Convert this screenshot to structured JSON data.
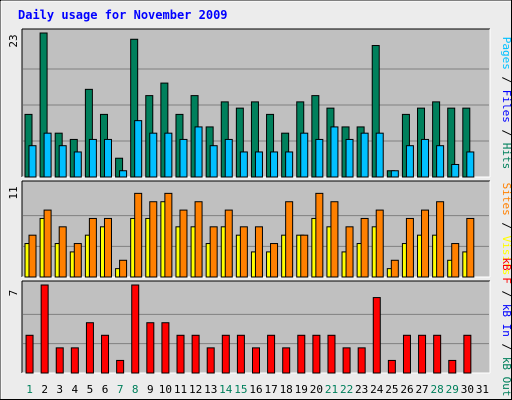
{
  "title": "Daily usage for November 2009",
  "colors": {
    "background": "#ececec",
    "plot": "#c0c0c0",
    "title": "#0000ff",
    "hits": "#00805c",
    "files": "#00c0ff",
    "pages": "#00c0ff",
    "visits": "#ffff00",
    "sites": "#ff8000",
    "kbin": "#ff0000",
    "kbout": "#00805c"
  },
  "right_labels": {
    "top": [
      {
        "text": "Pages",
        "color": "#00c0ff"
      },
      {
        "text": " / ",
        "color": "#000000"
      },
      {
        "text": "Files",
        "color": "#0000ff"
      },
      {
        "text": " / ",
        "color": "#000000"
      },
      {
        "text": "Hits",
        "color": "#00805c"
      }
    ],
    "middle": [
      {
        "text": "Sites",
        "color": "#ff8000"
      },
      {
        "text": " / ",
        "color": "#000000"
      },
      {
        "text": "Visits",
        "color": "#ffff00"
      }
    ],
    "bottom": [
      {
        "text": "kB F",
        "color": "#ff0000"
      },
      {
        "text": " / ",
        "color": "#000000"
      },
      {
        "text": "kB In",
        "color": "#0000ff"
      },
      {
        "text": " / ",
        "color": "#000000"
      },
      {
        "text": "kB Out",
        "color": "#00805c"
      }
    ]
  },
  "chart_data": {
    "type": "bar",
    "categories": [
      "1",
      "2",
      "3",
      "4",
      "5",
      "6",
      "7",
      "8",
      "9",
      "10",
      "11",
      "12",
      "13",
      "14",
      "15",
      "16",
      "17",
      "18",
      "19",
      "20",
      "21",
      "22",
      "23",
      "24",
      "25",
      "26",
      "27",
      "28",
      "29",
      "30",
      "31"
    ],
    "weekend_days": [
      "1",
      "7",
      "8",
      "14",
      "15",
      "21",
      "22",
      "28",
      "29"
    ],
    "panels": [
      {
        "name": "hits-files-pages",
        "ymax_label": "23",
        "ylim": [
          0,
          23
        ],
        "series": [
          {
            "values": [
              10,
              23,
              7,
              6,
              14,
              10,
              3,
              22,
              13,
              15,
              10,
              13,
              8,
              12,
              11,
              12,
              10,
              7,
              12,
              13,
              11,
              8,
              8,
              21,
              1,
              10,
              11,
              12,
              11,
              11
            ]
          },
          {
            "values": [
              5,
              7,
              5,
              4,
              6,
              6,
              1,
              9,
              7,
              7,
              6,
              8,
              5,
              6,
              4,
              4,
              4,
              4,
              7,
              6,
              8,
              6,
              7,
              7,
              1,
              5,
              6,
              5,
              2,
              4
            ]
          }
        ]
      },
      {
        "name": "visits-sites",
        "ymax_label": "11",
        "ylim": [
          0,
          11
        ],
        "series": [
          {
            "values": [
              4,
              7,
              4,
              3,
              5,
              6,
              1,
              7,
              7,
              9,
              6,
              6,
              4,
              6,
              5,
              3,
              3,
              5,
              5,
              7,
              6,
              3,
              4,
              6,
              1,
              4,
              5,
              5,
              2,
              3
            ]
          },
          {
            "values": [
              5,
              8,
              6,
              4,
              7,
              7,
              2,
              10,
              9,
              10,
              8,
              9,
              6,
              8,
              6,
              6,
              4,
              9,
              5,
              10,
              9,
              6,
              7,
              8,
              2,
              7,
              8,
              9,
              4,
              7
            ]
          }
        ]
      },
      {
        "name": "kbytes",
        "ymax_label": "7",
        "ylim": [
          0,
          7
        ],
        "series": [
          {
            "values": [
              3,
              7,
              2,
              2,
              4,
              3,
              1,
              7,
              4,
              4,
              3,
              3,
              2,
              3,
              3,
              2,
              3,
              2,
              3,
              3,
              3,
              2,
              2,
              6,
              1,
              3,
              3,
              3,
              1,
              3
            ]
          }
        ]
      }
    ]
  }
}
